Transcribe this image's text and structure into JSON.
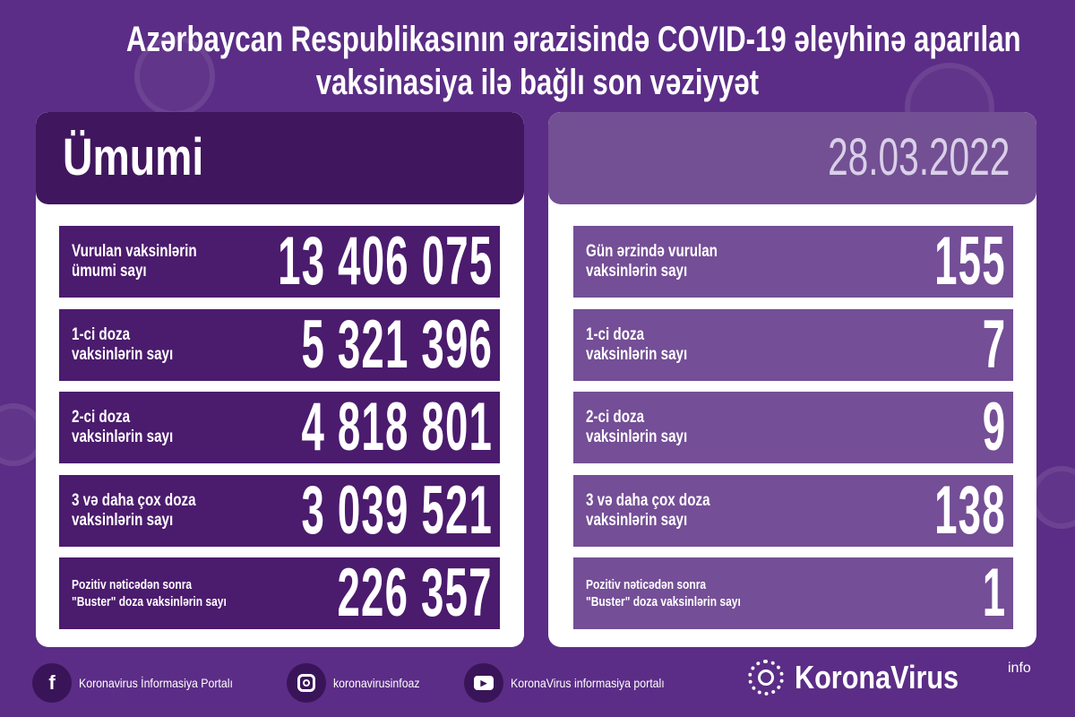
{
  "title": {
    "line1": "Azərbaycan Respublikasının ərazisində COVID-19 əleyhinə aparılan",
    "line2": "vaksinasiya ilə bağlı son vəziyyət"
  },
  "left": {
    "header": "Ümumi",
    "rows": [
      {
        "label1": "Vurulan vaksinlərin",
        "label2": "ümumi sayı",
        "value": "13 406 075"
      },
      {
        "label1": "1-ci doza",
        "label2": "vaksinlərin sayı",
        "value": "5 321 396"
      },
      {
        "label1": "2-ci doza",
        "label2": "vaksinlərin sayı",
        "value": "4 818 801"
      },
      {
        "label1": "3 və daha çox doza",
        "label2": "vaksinlərin sayı",
        "value": "3 039 521"
      },
      {
        "label1": "Pozitiv nəticədən sonra",
        "label2": "\"Buster\" doza vaksinlərin sayı",
        "value": "226 357"
      }
    ]
  },
  "right": {
    "date": "28.03.2022",
    "rows": [
      {
        "label1": "Gün ərzində vurulan",
        "label2": "vaksinlərin sayı",
        "value": "155"
      },
      {
        "label1": "1-ci doza",
        "label2": "vaksinlərin sayı",
        "value": "7"
      },
      {
        "label1": "2-ci doza",
        "label2": "vaksinlərin sayı",
        "value": "9"
      },
      {
        "label1": "3 və daha çox doza",
        "label2": "vaksinlərin sayı",
        "value": "138"
      },
      {
        "label1": "Pozitiv nəticədən sonra",
        "label2": "\"Buster\" doza vaksinlərin sayı",
        "value": "1"
      }
    ]
  },
  "footer": {
    "facebook": "Koronavirus İnformasiya Portalı",
    "instagram": "koronavirusinfoaz",
    "youtube": "KoronaVirus informasiya portalı",
    "brand": "KoronaVirus",
    "brand_sup": "info"
  },
  "colors": {
    "background": "#5b2d86",
    "left_row": "#4b1b6d",
    "right_row": "#744e96"
  }
}
